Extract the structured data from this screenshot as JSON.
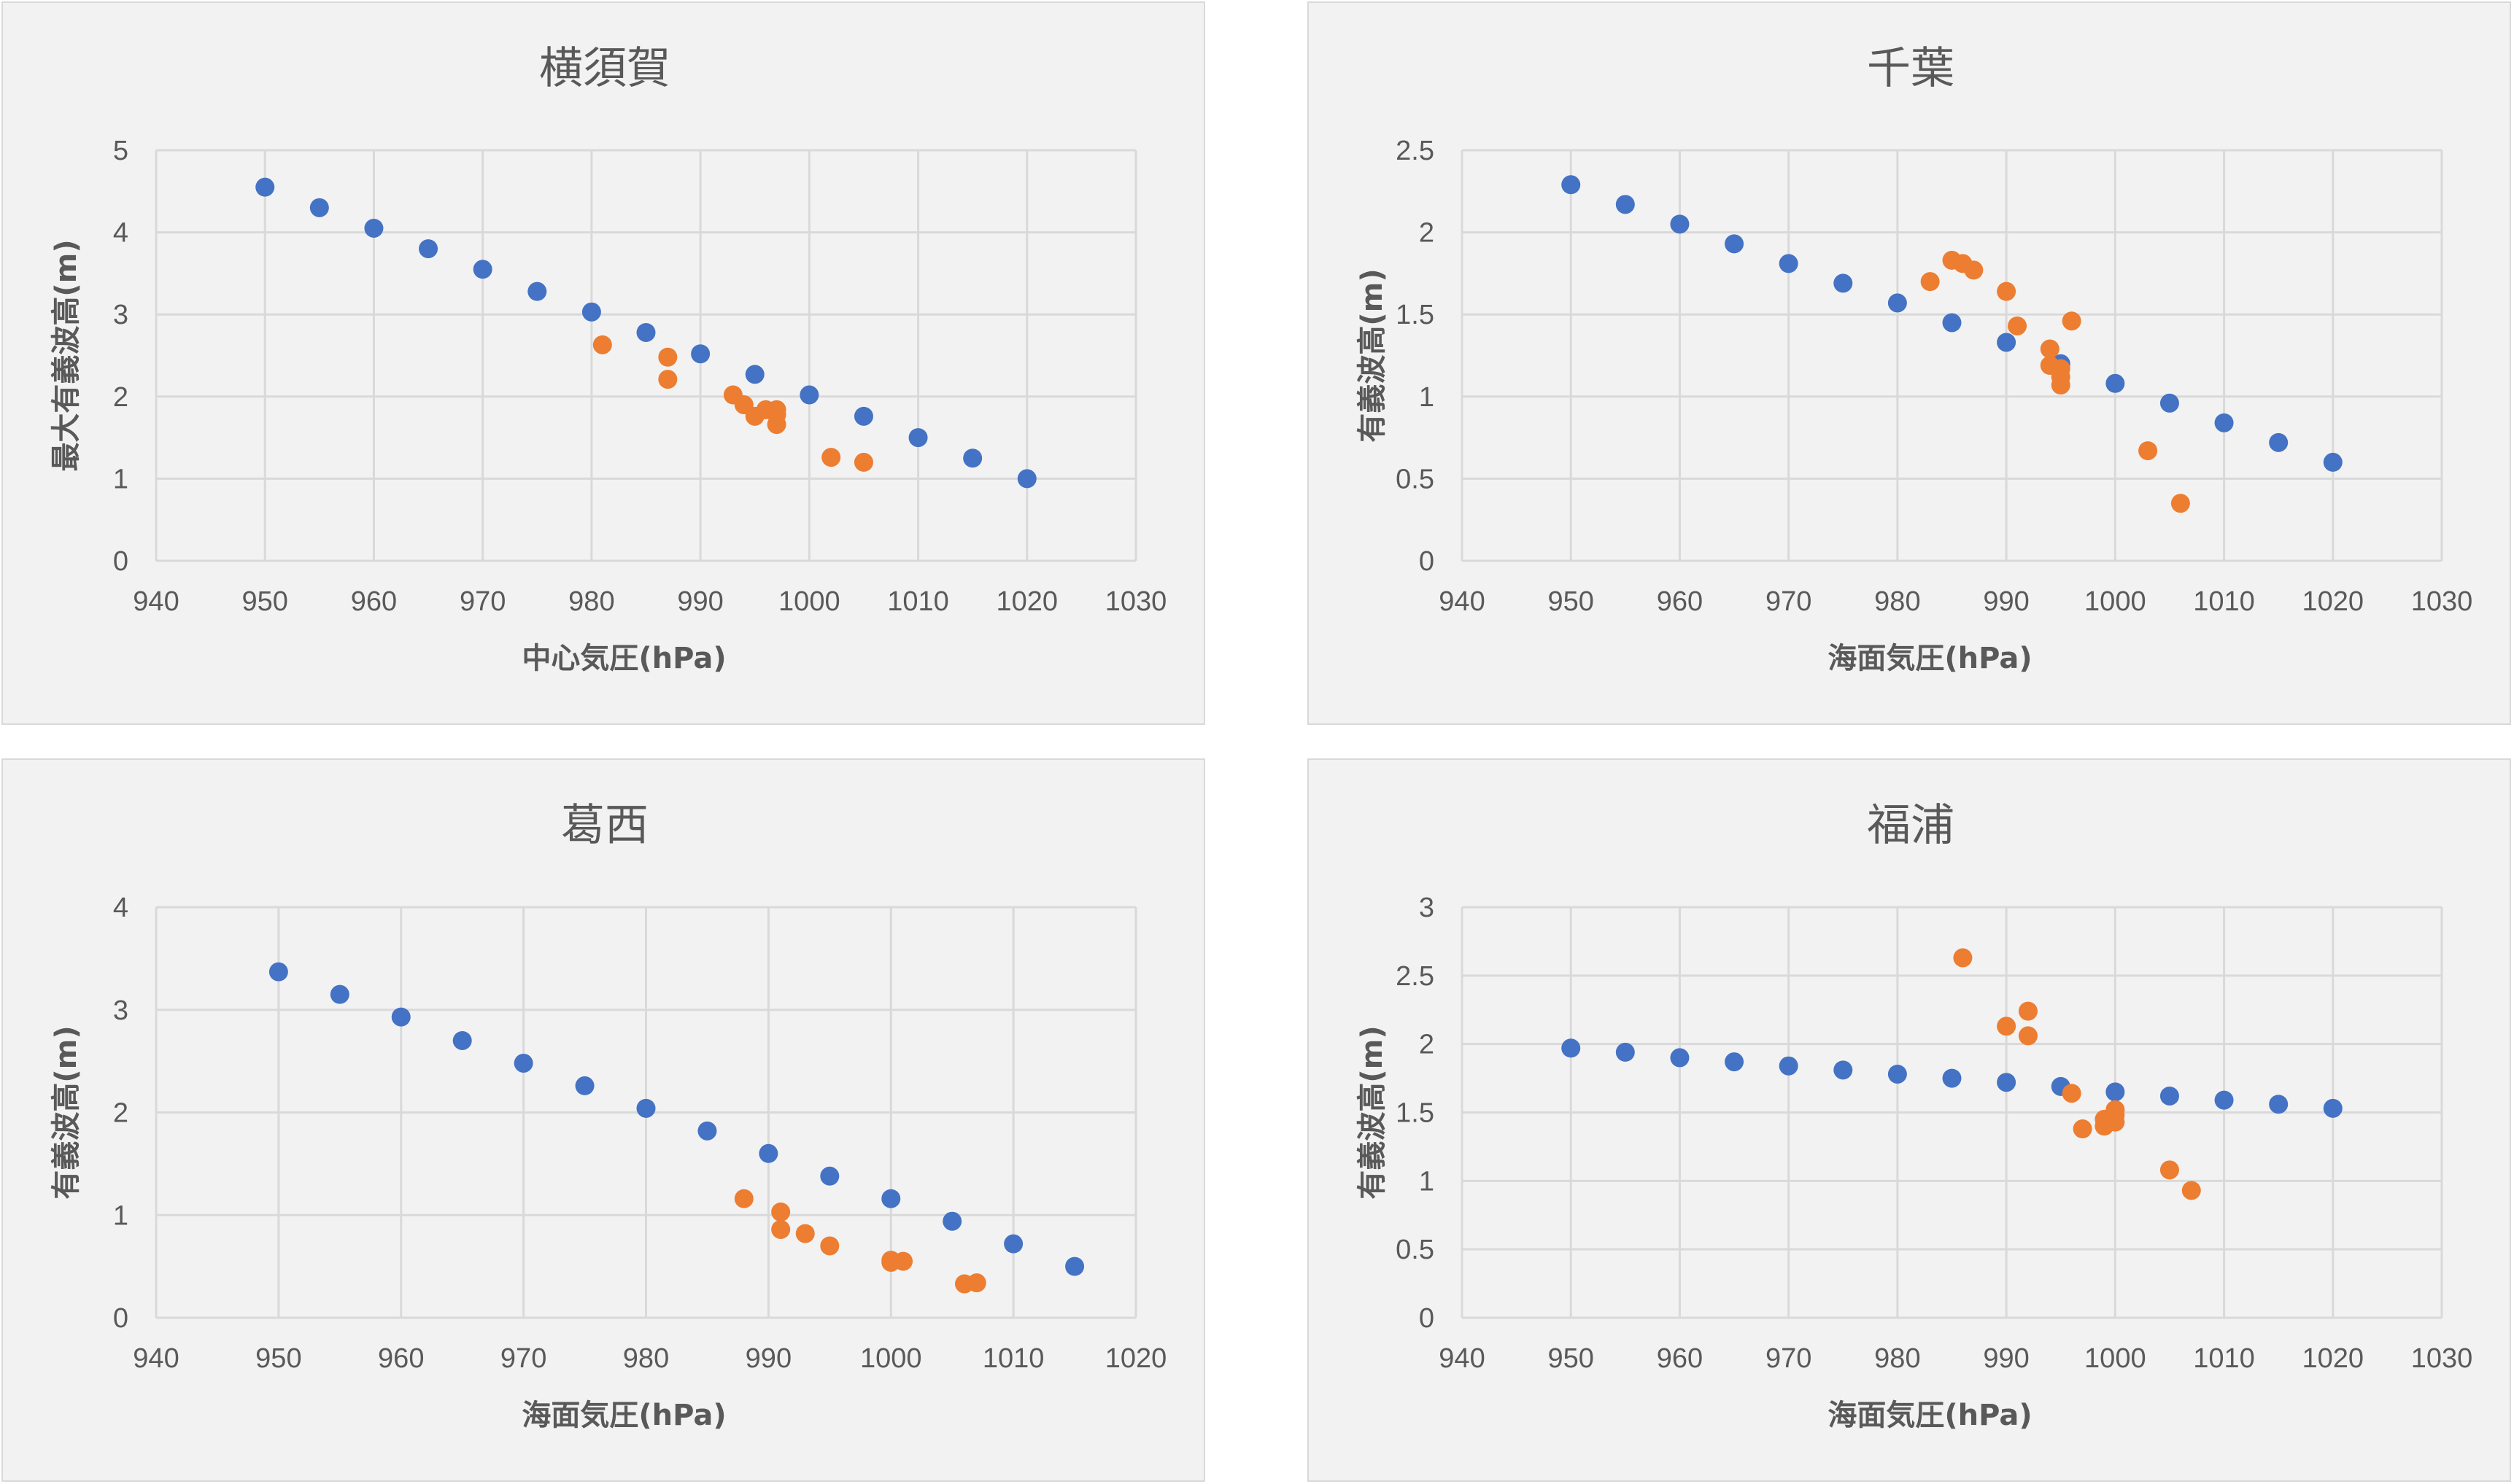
{
  "colors": {
    "series1": "#4472c4",
    "series2": "#ed7d31",
    "background": "#f2f2f2",
    "grid": "#d9d9d9",
    "text": "#595959"
  },
  "chart_data": [
    {
      "type": "scatter",
      "title": "横須賀",
      "xlabel": "中心気圧(hPa)",
      "ylabel": "最大有義波高(m)",
      "xlim": [
        940,
        1030
      ],
      "ylim": [
        0,
        5
      ],
      "xticks": [
        940,
        950,
        960,
        970,
        980,
        990,
        1000,
        1010,
        1020,
        1030
      ],
      "yticks": [
        0,
        1,
        2,
        3,
        4,
        5
      ],
      "yticklabels": [
        "0",
        "1",
        "2",
        "3",
        "4",
        "5"
      ],
      "grid": true,
      "series": [
        {
          "color": "#4472c4",
          "points": [
            [
              950,
              4.55
            ],
            [
              955,
              4.3
            ],
            [
              960,
              4.05
            ],
            [
              965,
              3.8
            ],
            [
              970,
              3.55
            ],
            [
              975,
              3.28
            ],
            [
              980,
              3.03
            ],
            [
              985,
              2.78
            ],
            [
              990,
              2.52
            ],
            [
              995,
              2.27
            ],
            [
              1000,
              2.02
            ],
            [
              1005,
              1.76
            ],
            [
              1010,
              1.5
            ],
            [
              1015,
              1.25
            ],
            [
              1020,
              1.0
            ]
          ]
        },
        {
          "color": "#ed7d31",
          "points": [
            [
              981,
              2.63
            ],
            [
              987,
              2.48
            ],
            [
              987,
              2.21
            ],
            [
              993,
              2.02
            ],
            [
              994,
              1.9
            ],
            [
              995,
              1.76
            ],
            [
              996,
              1.84
            ],
            [
              997,
              1.78
            ],
            [
              997,
              1.84
            ],
            [
              997,
              1.66
            ],
            [
              1002,
              1.26
            ],
            [
              1005,
              1.2
            ]
          ]
        }
      ]
    },
    {
      "type": "scatter",
      "title": "千葉",
      "xlabel": "海面気圧(hPa)",
      "ylabel": "有義波高(m)",
      "xlim": [
        940,
        1030
      ],
      "ylim": [
        0,
        2.5
      ],
      "xticks": [
        940,
        950,
        960,
        970,
        980,
        990,
        1000,
        1010,
        1020,
        1030
      ],
      "yticks": [
        0,
        0.5,
        1,
        1.5,
        2,
        2.5
      ],
      "yticklabels": [
        "0",
        "0.5",
        "1",
        "1.5",
        "2",
        "2.5"
      ],
      "grid": true,
      "series": [
        {
          "color": "#4472c4",
          "points": [
            [
              950,
              2.29
            ],
            [
              955,
              2.17
            ],
            [
              960,
              2.05
            ],
            [
              965,
              1.93
            ],
            [
              970,
              1.81
            ],
            [
              975,
              1.69
            ],
            [
              980,
              1.57
            ],
            [
              985,
              1.45
            ],
            [
              990,
              1.33
            ],
            [
              995,
              1.2
            ],
            [
              1000,
              1.08
            ],
            [
              1005,
              0.96
            ],
            [
              1010,
              0.84
            ],
            [
              1015,
              0.72
            ],
            [
              1020,
              0.6
            ]
          ]
        },
        {
          "color": "#ed7d31",
          "points": [
            [
              983,
              1.7
            ],
            [
              985,
              1.83
            ],
            [
              986,
              1.81
            ],
            [
              987,
              1.77
            ],
            [
              990,
              1.64
            ],
            [
              991,
              1.43
            ],
            [
              994,
              1.29
            ],
            [
              994,
              1.19
            ],
            [
              995,
              1.17
            ],
            [
              995,
              1.12
            ],
            [
              995,
              1.07
            ],
            [
              996,
              1.46
            ],
            [
              1003,
              0.67
            ],
            [
              1006,
              0.35
            ]
          ]
        }
      ]
    },
    {
      "type": "scatter",
      "title": "葛西",
      "xlabel": "海面気圧(hPa)",
      "ylabel": "有義波高(m)",
      "xlim": [
        940,
        1020
      ],
      "ylim": [
        0,
        4
      ],
      "xticks": [
        940,
        950,
        960,
        970,
        980,
        990,
        1000,
        1010,
        1020
      ],
      "yticks": [
        0,
        1,
        2,
        3,
        4
      ],
      "yticklabels": [
        "0",
        "1",
        "2",
        "3",
        "4"
      ],
      "grid": true,
      "series": [
        {
          "color": "#4472c4",
          "points": [
            [
              950,
              3.37
            ],
            [
              955,
              3.15
            ],
            [
              960,
              2.93
            ],
            [
              965,
              2.7
            ],
            [
              970,
              2.48
            ],
            [
              975,
              2.26
            ],
            [
              980,
              2.04
            ],
            [
              985,
              1.82
            ],
            [
              990,
              1.6
            ],
            [
              995,
              1.38
            ],
            [
              1000,
              1.16
            ],
            [
              1005,
              0.94
            ],
            [
              1010,
              0.72
            ],
            [
              1015,
              0.5
            ]
          ]
        },
        {
          "color": "#ed7d31",
          "points": [
            [
              988,
              1.16
            ],
            [
              991,
              1.03
            ],
            [
              991,
              0.86
            ],
            [
              993,
              0.82
            ],
            [
              995,
              0.7
            ],
            [
              1000,
              0.54
            ],
            [
              1000,
              0.56
            ],
            [
              1001,
              0.55
            ],
            [
              1006,
              0.33
            ],
            [
              1007,
              0.34
            ]
          ]
        }
      ]
    },
    {
      "type": "scatter",
      "title": "福浦",
      "xlabel": "海面気圧(hPa)",
      "ylabel": "有義波高(m)",
      "xlim": [
        940,
        1030
      ],
      "ylim": [
        0,
        3
      ],
      "xticks": [
        940,
        950,
        960,
        970,
        980,
        990,
        1000,
        1010,
        1020,
        1030
      ],
      "yticks": [
        0,
        0.5,
        1,
        1.5,
        2,
        2.5,
        3
      ],
      "yticklabels": [
        "0",
        "0.5",
        "1",
        "1.5",
        "2",
        "2.5",
        "3"
      ],
      "grid": true,
      "series": [
        {
          "color": "#4472c4",
          "points": [
            [
              950,
              1.97
            ],
            [
              955,
              1.94
            ],
            [
              960,
              1.9
            ],
            [
              965,
              1.87
            ],
            [
              970,
              1.84
            ],
            [
              975,
              1.81
            ],
            [
              980,
              1.78
            ],
            [
              985,
              1.75
            ],
            [
              990,
              1.72
            ],
            [
              995,
              1.69
            ],
            [
              1000,
              1.65
            ],
            [
              1005,
              1.62
            ],
            [
              1010,
              1.59
            ],
            [
              1015,
              1.56
            ],
            [
              1020,
              1.53
            ]
          ]
        },
        {
          "color": "#ed7d31",
          "points": [
            [
              986,
              2.63
            ],
            [
              990,
              2.13
            ],
            [
              992,
              2.24
            ],
            [
              992,
              2.06
            ],
            [
              996,
              1.64
            ],
            [
              997,
              1.38
            ],
            [
              999,
              1.4
            ],
            [
              999,
              1.45
            ],
            [
              1000,
              1.43
            ],
            [
              1000,
              1.48
            ],
            [
              1000,
              1.52
            ],
            [
              1005,
              1.08
            ],
            [
              1007,
              0.93
            ]
          ]
        }
      ]
    }
  ]
}
